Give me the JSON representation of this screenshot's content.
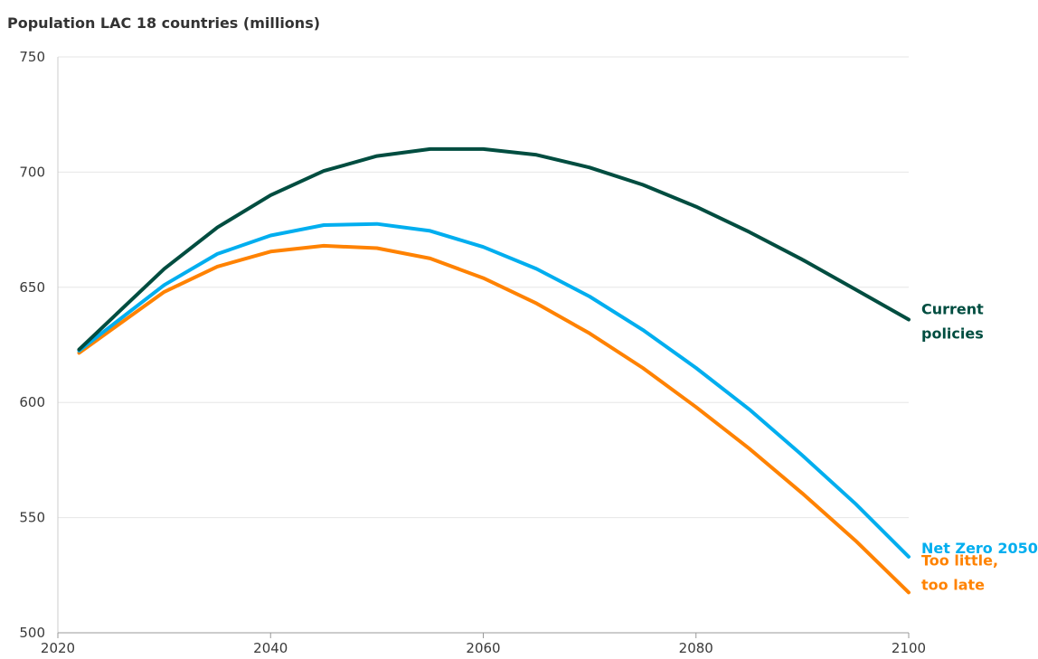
{
  "chart_data": {
    "type": "line",
    "title": "Population LAC 18 countries (millions)",
    "xlabel": "",
    "ylabel": "",
    "xlim": [
      2020,
      2100
    ],
    "ylim": [
      500,
      750
    ],
    "xticks": [
      "2020",
      "2040",
      "2060",
      "2080",
      "2100"
    ],
    "yticks": [
      "500",
      "550",
      "600",
      "650",
      "700",
      "750"
    ],
    "grid": "horizontal",
    "x": [
      2022,
      2030,
      2035,
      2040,
      2045,
      2050,
      2055,
      2060,
      2065,
      2070,
      2075,
      2080,
      2085,
      2090,
      2095,
      2100
    ],
    "series": [
      {
        "name": "Current policies",
        "label_lines": [
          "Current",
          "policies"
        ],
        "color": "#004d40",
        "values": [
          623,
          658,
          676,
          690,
          700.5,
          707,
          710,
          710,
          707.5,
          702,
          694.5,
          685,
          674,
          662,
          649,
          636
        ]
      },
      {
        "name": "Net Zero 2050",
        "label_lines": [
          "Net Zero 2050"
        ],
        "color": "#00aeef",
        "values": [
          622.5,
          651,
          664.5,
          672.5,
          677,
          677.5,
          674.5,
          667.5,
          658,
          646,
          631.5,
          615,
          597,
          577,
          556,
          533
        ]
      },
      {
        "name": "Too little, too late",
        "label_lines": [
          "Too little,",
          "too late"
        ],
        "color": "#ff8200",
        "values": [
          621.5,
          648,
          659,
          665.5,
          668,
          667,
          662.5,
          654,
          643,
          630,
          615,
          598,
          580,
          560.5,
          540,
          517.5
        ]
      }
    ]
  }
}
